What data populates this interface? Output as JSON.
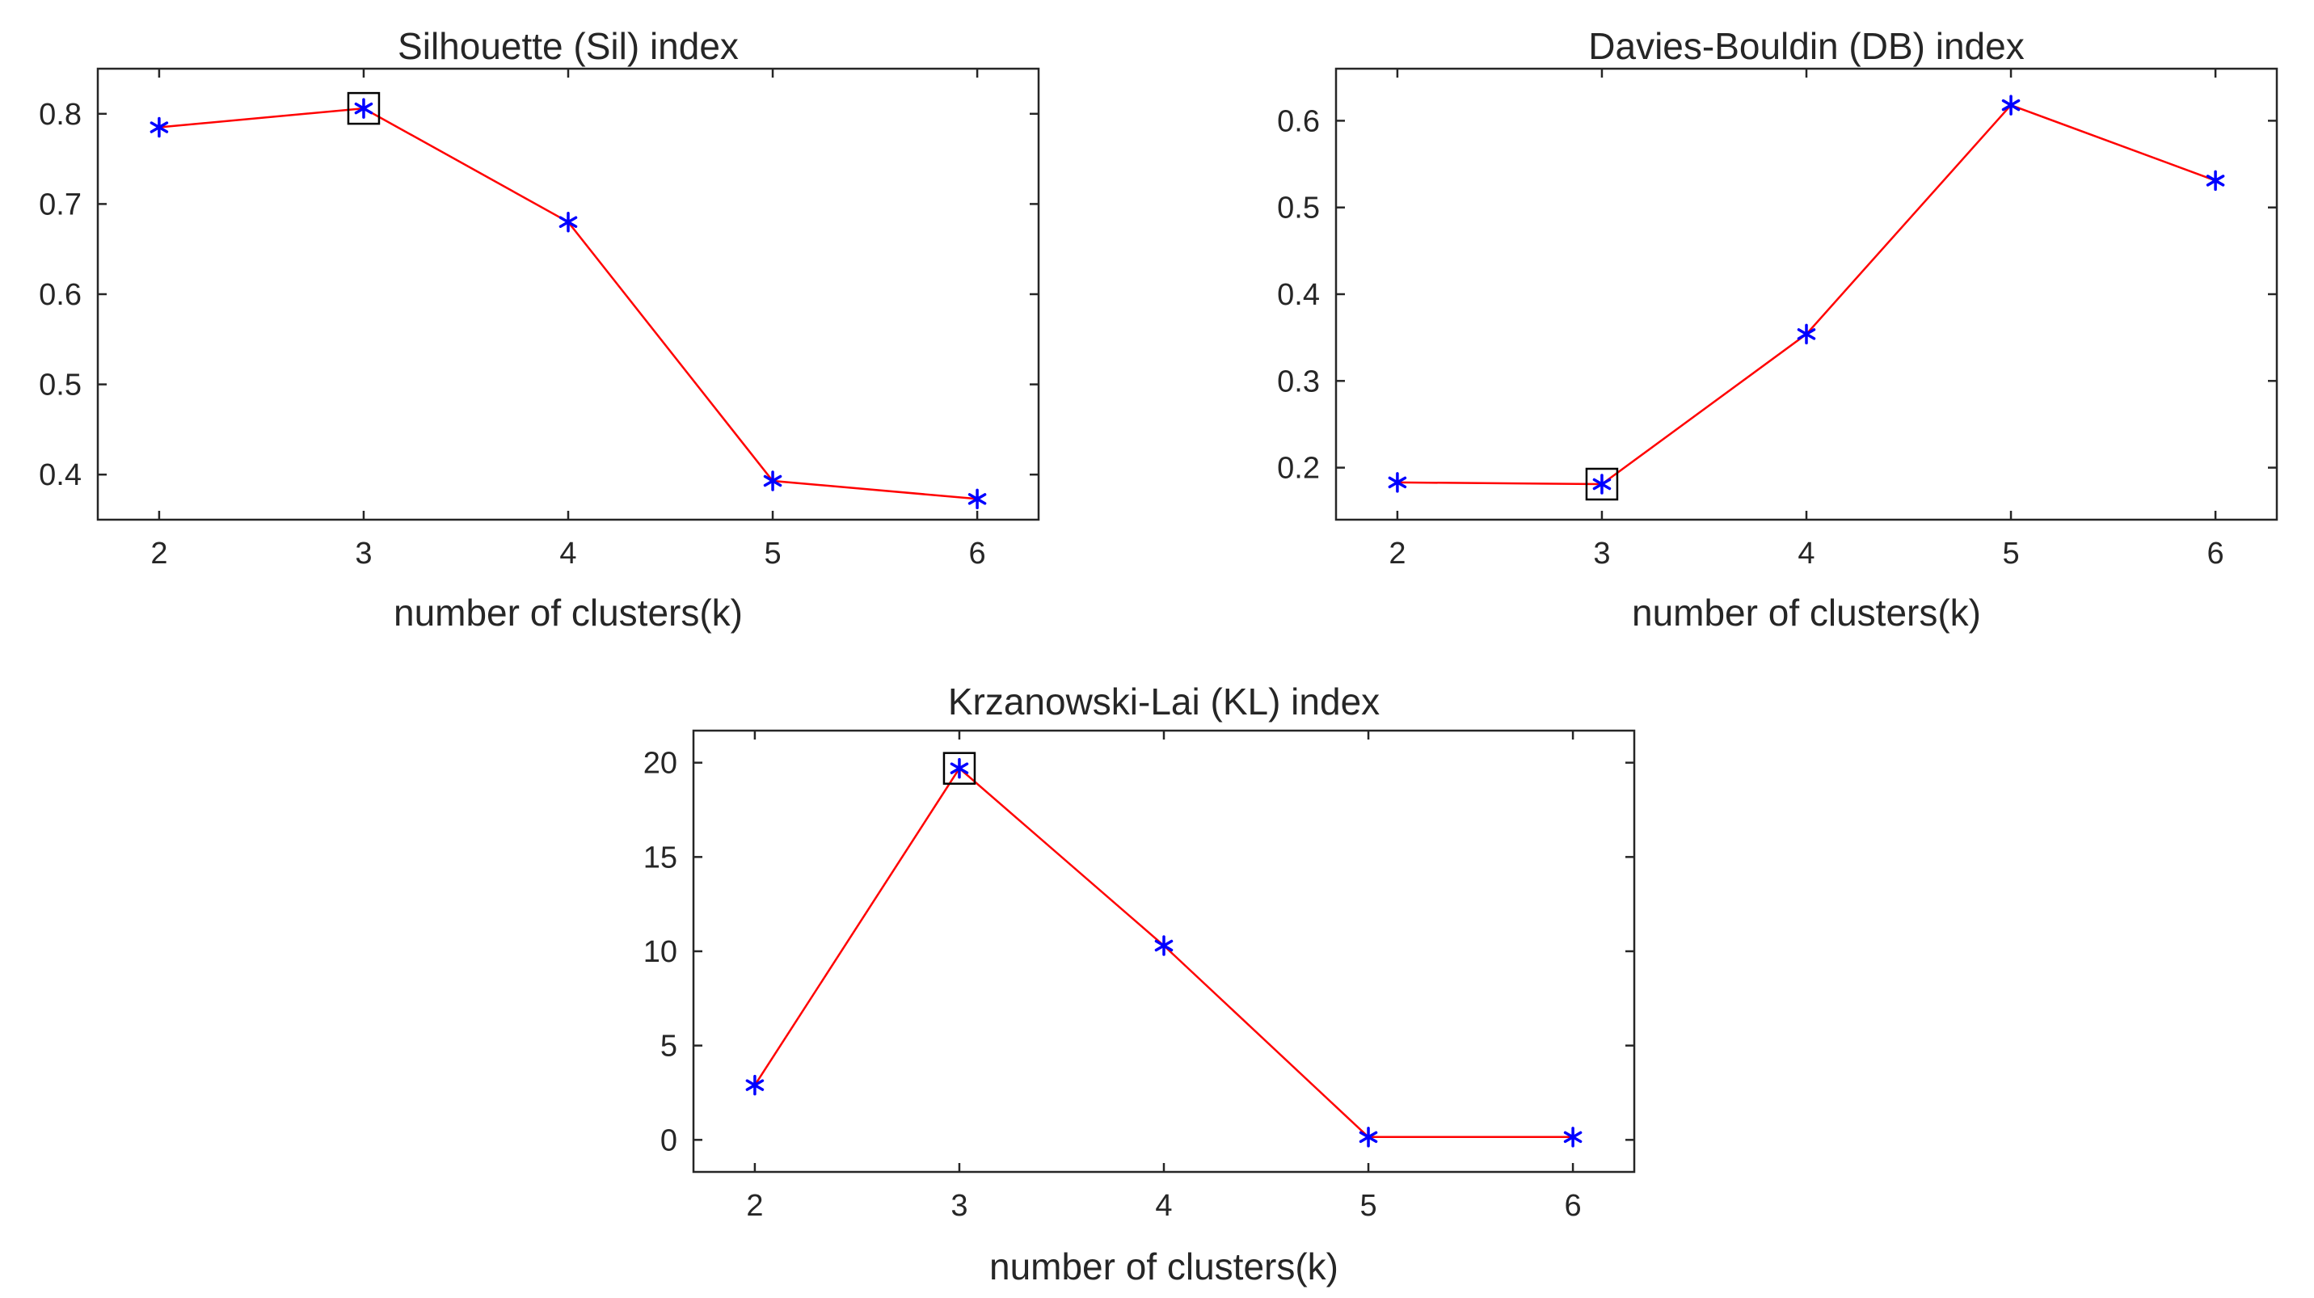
{
  "chart_data": [
    {
      "type": "line",
      "title": "Silhouette (Sil) index",
      "xlabel": "number of clusters(k)",
      "ylabel": "",
      "x": [
        2,
        3,
        4,
        5,
        6
      ],
      "values": [
        0.785,
        0.806,
        0.68,
        0.393,
        0.373
      ],
      "xlim": [
        1.7,
        6.3
      ],
      "ylim": [
        0.35,
        0.85
      ],
      "xticks": [
        2,
        3,
        4,
        5,
        6
      ],
      "xtick_labels": [
        "2",
        "3",
        "4",
        "5",
        "6"
      ],
      "yticks": [
        0.4,
        0.5,
        0.6,
        0.7,
        0.8
      ],
      "ytick_labels": [
        "0.4",
        "0.5",
        "0.6",
        "0.7",
        "0.8"
      ],
      "highlight_x": 3,
      "line_color": "#ff0000",
      "marker_color": "#0000ff",
      "highlight_color": "#000000",
      "grid": false
    },
    {
      "type": "line",
      "title": "Davies-Bouldin (DB) index",
      "xlabel": "number of clusters(k)",
      "ylabel": "",
      "x": [
        2,
        3,
        4,
        5,
        6
      ],
      "values": [
        0.183,
        0.181,
        0.354,
        0.618,
        0.531
      ],
      "xlim": [
        1.7,
        6.3
      ],
      "ylim": [
        0.14,
        0.66
      ],
      "xticks": [
        2,
        3,
        4,
        5,
        6
      ],
      "xtick_labels": [
        "2",
        "3",
        "4",
        "5",
        "6"
      ],
      "yticks": [
        0.2,
        0.3,
        0.4,
        0.5,
        0.6
      ],
      "ytick_labels": [
        "0.2",
        "0.3",
        "0.4",
        "0.5",
        "0.6"
      ],
      "highlight_x": 3,
      "line_color": "#ff0000",
      "marker_color": "#0000ff",
      "highlight_color": "#000000",
      "grid": false
    },
    {
      "type": "line",
      "title": "Krzanowski-Lai (KL) index",
      "xlabel": "number of clusters(k)",
      "ylabel": "",
      "x": [
        2,
        3,
        4,
        5,
        6
      ],
      "values": [
        2.9,
        19.7,
        10.3,
        0.15,
        0.15
      ],
      "xlim": [
        1.7,
        6.3
      ],
      "ylim": [
        -1.7,
        21.7
      ],
      "xticks": [
        2,
        3,
        4,
        5,
        6
      ],
      "xtick_labels": [
        "2",
        "3",
        "4",
        "5",
        "6"
      ],
      "yticks": [
        0,
        5,
        10,
        15,
        20
      ],
      "ytick_labels": [
        "0",
        "5",
        "10",
        "15",
        "20"
      ],
      "highlight_x": 3,
      "line_color": "#ff0000",
      "marker_color": "#0000ff",
      "highlight_color": "#000000",
      "grid": false
    }
  ]
}
